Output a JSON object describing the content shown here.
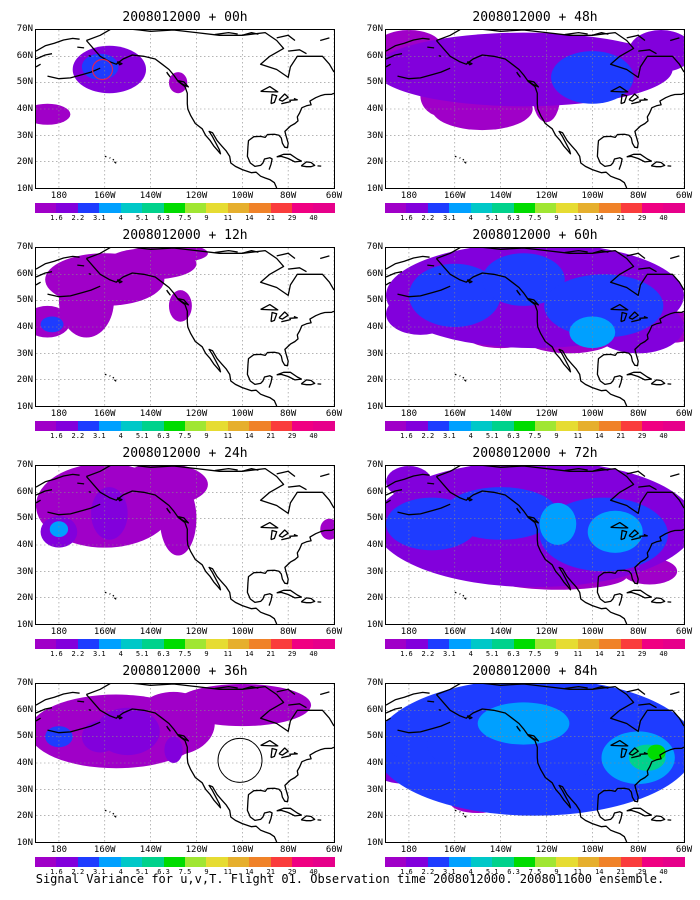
{
  "footer": "Signal Variance for u,v,T. Flight 01. Observation time 2008012000. 2008011600 ensemble.",
  "lat_labels": [
    "70N",
    "60N",
    "50N",
    "40N",
    "30N",
    "20N",
    "10N"
  ],
  "lon_labels": [
    "180",
    "160W",
    "140W",
    "120W",
    "100W",
    "80W",
    "60W"
  ],
  "colorbar": {
    "labels": [
      "1.6",
      "2.2",
      "3.1",
      "4",
      "5.1",
      "6.3",
      "7.5",
      "9",
      "11",
      "14",
      "21",
      "29",
      "40"
    ],
    "colors": [
      "#a000c8",
      "#8200dc",
      "#1e3cff",
      "#00a0ff",
      "#00c8c8",
      "#00d28c",
      "#00dc00",
      "#a0e632",
      "#e6dc32",
      "#e6af2d",
      "#f08228",
      "#fa3c3c",
      "#f00082",
      "#e6008a"
    ]
  },
  "panels": [
    {
      "title": "2008012000 + 00h",
      "intensity": 0
    },
    {
      "title": "2008012000 + 12h",
      "intensity": 1
    },
    {
      "title": "2008012000 + 24h",
      "intensity": 2
    },
    {
      "title": "2008012000 + 36h",
      "intensity": 3
    },
    {
      "title": "2008012000 + 48h",
      "intensity": 4
    },
    {
      "title": "2008012000 + 60h",
      "intensity": 5
    },
    {
      "title": "2008012000 + 72h",
      "intensity": 6
    },
    {
      "title": "2008012000 + 84h",
      "intensity": 7
    }
  ]
}
